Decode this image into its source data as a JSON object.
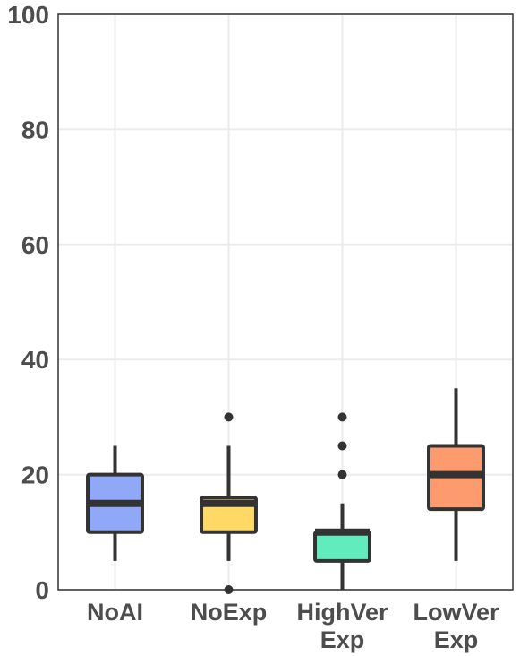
{
  "chart_data": {
    "type": "boxplot",
    "title": "",
    "xlabel": "",
    "ylabel": "",
    "ylim": [
      0,
      100
    ],
    "yticks": [
      0,
      20,
      40,
      60,
      80,
      100
    ],
    "grid": true,
    "legend": "none",
    "categories": [
      {
        "label_lines": [
          "NoAI"
        ],
        "color": "#8fa8f8",
        "min": 5,
        "q1": 10,
        "median": 15,
        "q3": 20,
        "max": 25,
        "outliers": []
      },
      {
        "label_lines": [
          "NoExp"
        ],
        "color": "#ffd966",
        "min": 5,
        "q1": 10,
        "median": 15,
        "q3": 16,
        "max": 25,
        "outliers": [
          0,
          30
        ]
      },
      {
        "label_lines": [
          "HighVer",
          "Exp"
        ],
        "color": "#62ecbe",
        "min": 0,
        "q1": 5,
        "median": 10,
        "q3": 10,
        "max": 15,
        "outliers": [
          20,
          25,
          30
        ]
      },
      {
        "label_lines": [
          "LowVer",
          "Exp"
        ],
        "color": "#fd9b6e",
        "min": 5,
        "q1": 14,
        "median": 20,
        "q3": 25,
        "max": 35,
        "outliers": []
      }
    ]
  }
}
